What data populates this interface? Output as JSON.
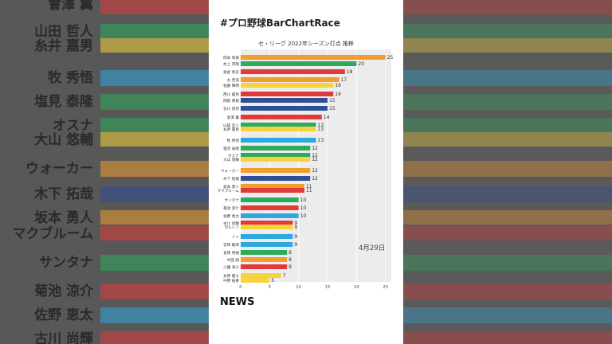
{
  "header": {
    "hashtag": "#プロ野球BarChartRace"
  },
  "news": {
    "label": "NEWS"
  },
  "chart_data": {
    "type": "bar",
    "orientation": "horizontal",
    "title": "セ・リーグ 2022年シーズン打点 推移",
    "date_label": "4月29日",
    "xlim": [
      0,
      26
    ],
    "xticks": [
      0,
      5,
      10,
      15,
      20,
      25
    ],
    "grid": true,
    "bars": [
      {
        "label": "岡本 和真",
        "value": 25,
        "color": "#f39c2f"
      },
      {
        "label": "村上 宗隆",
        "value": 20,
        "color": "#2eaa5c"
      },
      {
        "label": "坂倉 将吾",
        "value": 18,
        "color": "#e03a3a"
      },
      {
        "label": "丸 佳浩",
        "value": 17,
        "color": "#f39c2f"
      },
      {
        "label": "佐藤 輝明",
        "value": 16,
        "color": "#f6d33c"
      },
      {
        "label": "西川 龍馬",
        "value": 16,
        "color": "#e03a3a"
      },
      {
        "label": "岡部 勇樹",
        "value": 15,
        "color": "#2e4f96"
      },
      {
        "label": "石川 昂弥",
        "value": 15,
        "color": "#2e4f96"
      },
      {
        "label": "會澤 翼",
        "value": 14,
        "color": "#e03a3a"
      },
      {
        "label": "山田 哲人",
        "value": 13,
        "color": "#2eaa5c"
      },
      {
        "label": "糸井 嘉男",
        "value": 13,
        "color": "#f6d33c"
      },
      {
        "label": "牧 秀悟",
        "value": 13,
        "color": "#2ea8df"
      },
      {
        "label": "塩見 泰隆",
        "value": 12,
        "color": "#2eaa5c"
      },
      {
        "label": "オスナ",
        "value": 12,
        "color": "#2eaa5c"
      },
      {
        "label": "大山 悠輔",
        "value": 12,
        "color": "#f6d33c"
      },
      {
        "label": "ウォーカー",
        "value": 12,
        "color": "#f39c2f"
      },
      {
        "label": "木下 拓哉",
        "value": 12,
        "color": "#2e4f96"
      },
      {
        "label": "坂本 勇人",
        "value": 11,
        "color": "#f39c2f"
      },
      {
        "label": "マクブルーム",
        "value": 11,
        "color": "#e03a3a"
      },
      {
        "label": "サンタナ",
        "value": 10,
        "color": "#2eaa5c"
      },
      {
        "label": "菊池 涼介",
        "value": 10,
        "color": "#e03a3a"
      },
      {
        "label": "佐野 恵太",
        "value": 10,
        "color": "#2ea8df"
      },
      {
        "label": "古川 尚輝",
        "value": 9,
        "color": "#e03a3a"
      },
      {
        "label": "ガルシア",
        "value": 9,
        "color": "#f6d33c"
      },
      {
        "label": "ソト",
        "value": 9,
        "color": "#2ea8df"
      },
      {
        "label": "宮崎 敏郎",
        "value": 9,
        "color": "#2ea8df"
      },
      {
        "label": "長岡 秀樹",
        "value": 8,
        "color": "#2eaa5c"
      },
      {
        "label": "中田 翔",
        "value": 8,
        "color": "#f39c2f"
      },
      {
        "label": "小園 海斗",
        "value": 8,
        "color": "#e03a3a"
      },
      {
        "label": "糸原 健斗",
        "value": 7,
        "color": "#f6d33c"
      },
      {
        "label": "中野 拓夢",
        "value": 5,
        "color": "#f6d33c"
      }
    ]
  },
  "background": {
    "left_labels": [
      "會澤 翼",
      "山田 哲人",
      "糸井 嘉男",
      "牧 秀悟",
      "塩見 泰隆",
      "オスナ",
      "大山 悠輔",
      "ウォーカー",
      "木下 拓哉",
      "坂本 勇人",
      "マクブルーム",
      "サンタナ",
      "菊池 涼介",
      "佐野 恵太",
      "古川 尚輝"
    ]
  }
}
